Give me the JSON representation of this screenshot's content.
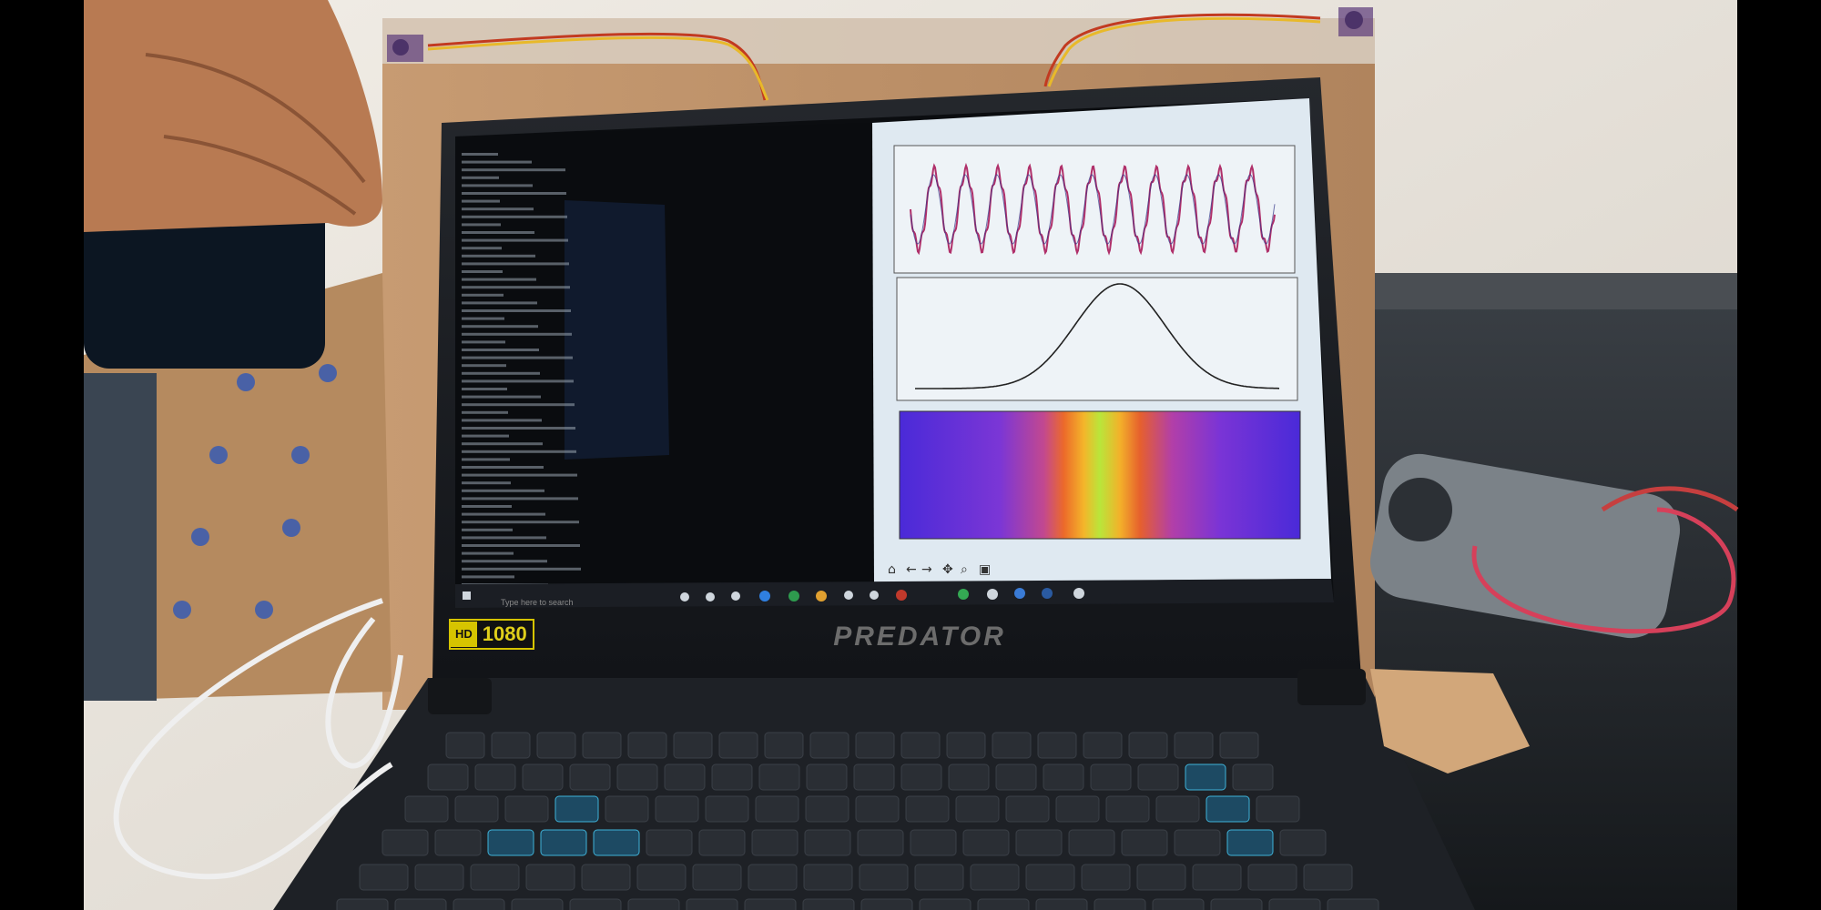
{
  "laptop": {
    "brand": "PREDATOR",
    "badge_hd": "HD",
    "badge_res": "1080"
  },
  "screen": {
    "terminal_lines": 56,
    "plots": [
      {
        "name": "waveform",
        "type": "line",
        "colors": [
          "#b0306a",
          "#333388"
        ]
      },
      {
        "name": "spectrum-peak",
        "type": "line",
        "colors": [
          "#222222"
        ]
      },
      {
        "name": "spectrogram",
        "type": "heatmap",
        "colors": [
          "#4a2ad8",
          "#a23ad0",
          "#e8602a",
          "#f3b22a",
          "#b8e63a"
        ]
      }
    ],
    "taskbar": {
      "search_placeholder": "Type here to search"
    }
  },
  "colors": {
    "laptop_body": "#1c1f24",
    "screen_dark": "#0b0d10",
    "plot_bg": "#dfe9f1",
    "cardboard": "#b98c63",
    "wall": "#e9e6e0"
  }
}
